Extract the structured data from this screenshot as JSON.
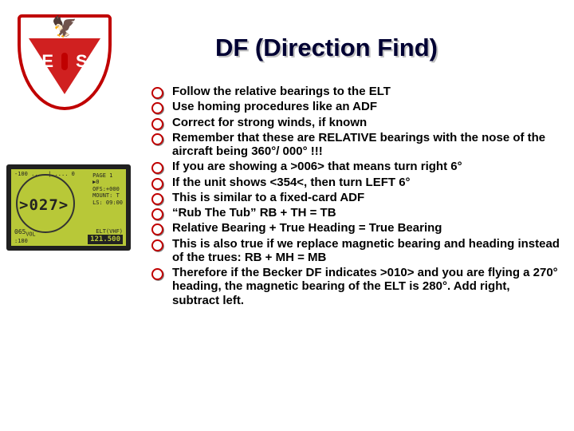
{
  "title": "DF (Direction Find)",
  "logo": {
    "letter_left": "E",
    "letter_right": "S"
  },
  "device": {
    "bignum": ">027>",
    "scale": "-100 .....|..... 0",
    "right_lines": [
      "PAGE 1",
      "▶0",
      "OFS:+000",
      "MOUNT: T",
      "LS: 09:00"
    ],
    "bottom_left_label": "VOL",
    "bottom_left_val": "065",
    "bottom_sub": ":180",
    "bottom_mid": "ELT(VHF)",
    "freq": "121.500"
  },
  "bullets": [
    "Follow the relative bearings to the ELT",
    "Use homing procedures like an ADF",
    "Correct for strong winds, if known",
    "Remember that these are RELATIVE bearings with the nose of the aircraft being 360°/ 000°  !!!",
    "If you are showing a >006> that means turn right 6°",
    "If the unit shows <354<, then turn LEFT 6°",
    "This is similar to a fixed-card ADF",
    "“Rub The Tub” RB + TH = TB",
    "Relative Bearing + True Heading = True Bearing",
    "This is also true if we replace magnetic bearing and heading instead of the trues: RB + MH = MB",
    "Therefore if the Becker DF indicates >010> and you are flying a 270° heading, the magnetic bearing of the ELT is 280°.  Add right, subtract left."
  ],
  "colors": {
    "title": "#000033",
    "title_shadow": "#c0c0c0",
    "bullet_ring": "#c00000",
    "text": "#000000",
    "lcd_bg": "#b8c838",
    "shield_border": "#c00000",
    "triangle": "#d02020"
  }
}
